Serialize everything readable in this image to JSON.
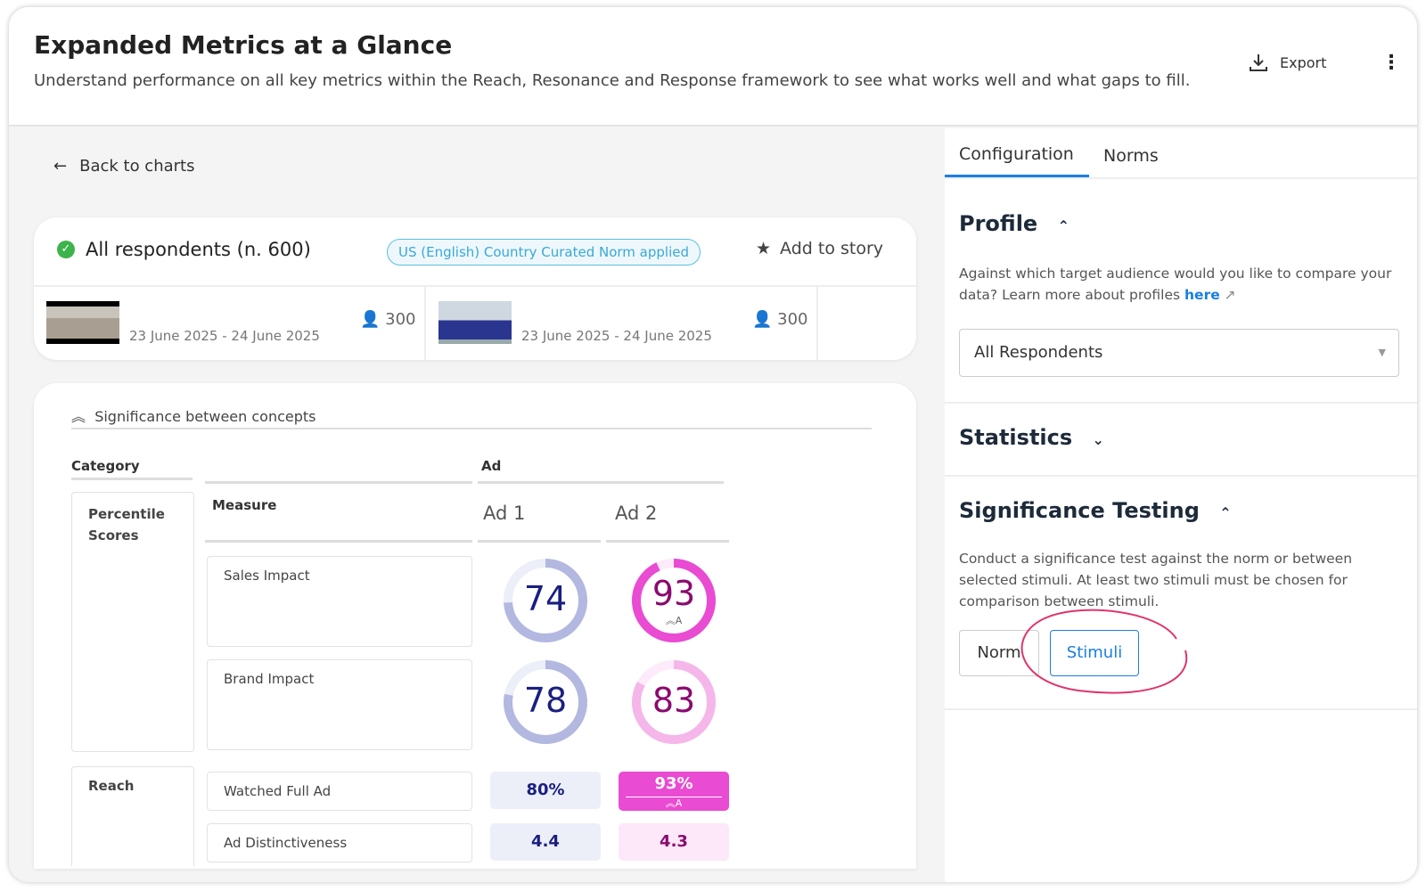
{
  "header": {
    "title": "Expanded Metrics at a Glance",
    "subtitle": "Understand performance on all key metrics within the Reach, Resonance and Response framework to see what works well and what gaps to fill.",
    "export_label": "Export"
  },
  "back_label": "Back to charts",
  "summary": {
    "title": "All respondents (n. 600)",
    "norm_badge": "US (English) Country Curated Norm applied",
    "add_to_story": "Add to story",
    "ads": [
      {
        "dates": "23 June 2025 - 24 June 2025",
        "count": "300"
      },
      {
        "dates": "23 June 2025 - 24 June 2025",
        "count": "300"
      }
    ]
  },
  "table": {
    "significance_label": "Significance between concepts",
    "category_header": "Category",
    "group_header": "Ad",
    "measure_header": "Measure",
    "columns": [
      "Ad 1",
      "Ad 2"
    ],
    "categories": [
      "Percentile Scores",
      "Reach"
    ],
    "rows": [
      {
        "measure": "Sales Impact",
        "values": [
          "74",
          "93"
        ],
        "sig": [
          null,
          "A"
        ]
      },
      {
        "measure": "Brand Impact",
        "values": [
          "78",
          "83"
        ],
        "sig": [
          null,
          null
        ]
      },
      {
        "measure": "Watched Full Ad",
        "values": [
          "80%",
          "93%"
        ],
        "sig": [
          null,
          "A"
        ]
      },
      {
        "measure": "Ad Distinctiveness",
        "values": [
          "4.4",
          "4.3"
        ],
        "sig": [
          null,
          null
        ]
      }
    ],
    "colors": {
      "ad1_ring": "#b3b8e0",
      "ad1_text": "#1a1f80",
      "ad2_ring": "#e94bd2",
      "ad2_text": "#8b0a6e"
    }
  },
  "panel": {
    "tabs": [
      "Configuration",
      "Norms"
    ],
    "active_tab": "Configuration",
    "profile": {
      "title": "Profile",
      "text": "Against which target audience would you like to compare your data? Learn more about profiles ",
      "link": "here",
      "select_value": "All Respondents"
    },
    "statistics": {
      "title": "Statistics"
    },
    "significance": {
      "title": "Significance Testing",
      "text": "Conduct a significance test against the norm or between selected stimuli. At least two stimuli must be chosen for comparison between stimuli.",
      "options": [
        "Norm",
        "Stimuli"
      ],
      "selected": "Stimuli"
    }
  }
}
